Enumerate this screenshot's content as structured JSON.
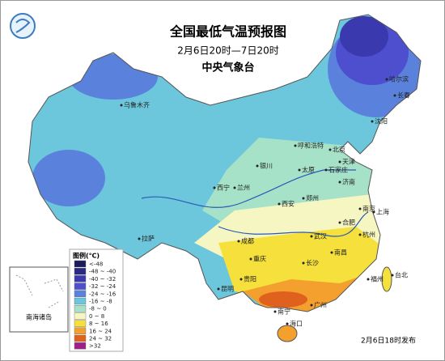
{
  "header": {
    "title": "全国最低气温预报图",
    "subtitle": "2月6日20时—7日20时",
    "agency": "中央气象台"
  },
  "legend": {
    "title": "图例(℃)",
    "items": [
      {
        "label": "<-48",
        "color": "#1c1c5c"
      },
      {
        "label": "-48 ~ -40",
        "color": "#2a2a86"
      },
      {
        "label": "-40 ~ -32",
        "color": "#3a3aae"
      },
      {
        "label": "-32 ~ -24",
        "color": "#4d4fcf"
      },
      {
        "label": "-24 ~ -16",
        "color": "#5a82dc"
      },
      {
        "label": "-16 ~ -8",
        "color": "#6cc6dc"
      },
      {
        "label": "-8 ~ 0",
        "color": "#a6e2c8"
      },
      {
        "label": "0 ~ 8",
        "color": "#f6f6c2"
      },
      {
        "label": "8 ~ 16",
        "color": "#f5e03c"
      },
      {
        "label": "16 ~ 24",
        "color": "#f3a02e"
      },
      {
        "label": "24 ~ 32",
        "color": "#e0601e"
      },
      {
        "label": ">32",
        "color": "#a0208a"
      }
    ]
  },
  "cities": [
    "乌鲁木齐",
    "哈尔滨",
    "长春",
    "沈阳",
    "呼和浩特",
    "北京",
    "天津",
    "石家庄",
    "太原",
    "济南",
    "银川",
    "兰州",
    "西宁",
    "西安",
    "郑州",
    "合肥",
    "南京",
    "上海",
    "杭州",
    "武汉",
    "成都",
    "重庆",
    "长沙",
    "南昌",
    "福州",
    "贵阳",
    "昆明",
    "南宁",
    "广州",
    "台北",
    "海口",
    "拉萨"
  ],
  "inset": {
    "label": "南海诸岛"
  },
  "footer": "2月6日18时发布"
}
